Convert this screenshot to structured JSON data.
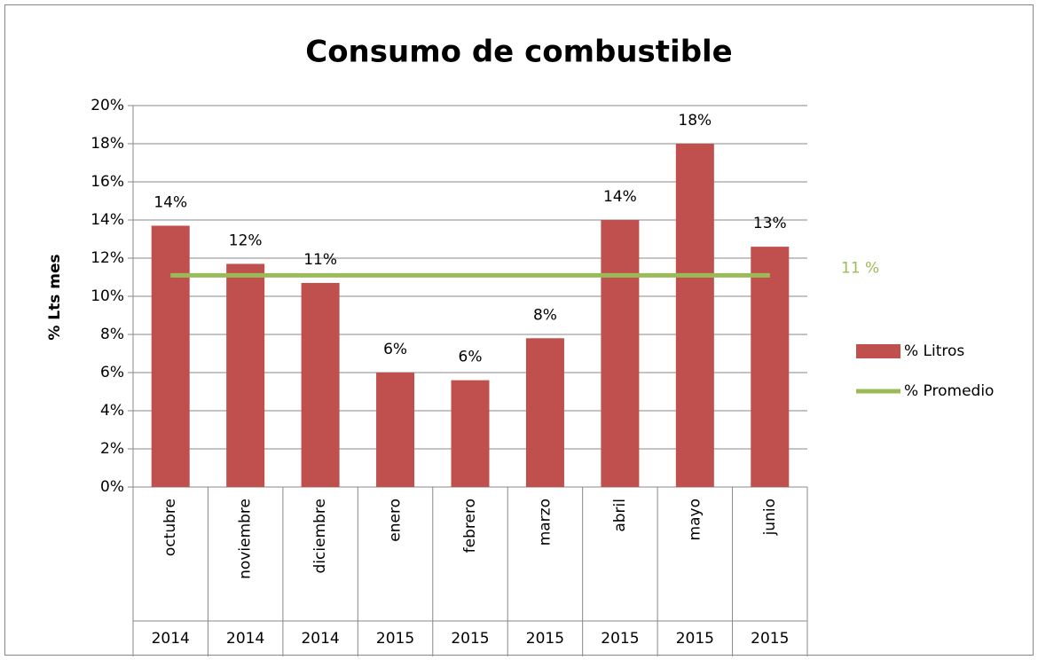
{
  "chart_data": {
    "type": "bar",
    "title": "Consumo de combustible",
    "y_label": "% Lts  mes",
    "categories": [
      "octubre",
      "noviembre",
      "diciembre",
      "enero",
      "febrero",
      "marzo",
      "abril",
      "mayo",
      "junio"
    ],
    "years": [
      "2014",
      "2014",
      "2014",
      "2015",
      "2015",
      "2015",
      "2015",
      "2015",
      "2015"
    ],
    "series": [
      {
        "name": "% Litros",
        "type": "bar",
        "color": "#c0504d",
        "values": [
          13.7,
          11.7,
          10.7,
          6.0,
          5.6,
          7.8,
          14.0,
          18.0,
          12.6
        ],
        "value_labels": [
          "14%",
          "12%",
          "11%",
          "6%",
          "6%",
          "8%",
          "14%",
          "18%",
          "13%"
        ]
      },
      {
        "name": "% Promedio",
        "type": "line",
        "color": "#9bbb59",
        "values": [
          11.1,
          11.1,
          11.1,
          11.1,
          11.1,
          11.1,
          11.1,
          11.1,
          11.1
        ],
        "label": "11 %"
      }
    ],
    "ylim": [
      0,
      20
    ],
    "yticks": [
      {
        "value": 0,
        "label": "0%"
      },
      {
        "value": 2,
        "label": "2%"
      },
      {
        "value": 4,
        "label": "4%"
      },
      {
        "value": 6,
        "label": "6%"
      },
      {
        "value": 8,
        "label": "8%"
      },
      {
        "value": 10,
        "label": "10%"
      },
      {
        "value": 12,
        "label": "12%"
      },
      {
        "value": 14,
        "label": "14%"
      },
      {
        "value": 16,
        "label": "16%"
      },
      {
        "value": 18,
        "label": "18%"
      },
      {
        "value": 20,
        "label": "20%"
      }
    ],
    "grid": true,
    "legend": "right"
  }
}
